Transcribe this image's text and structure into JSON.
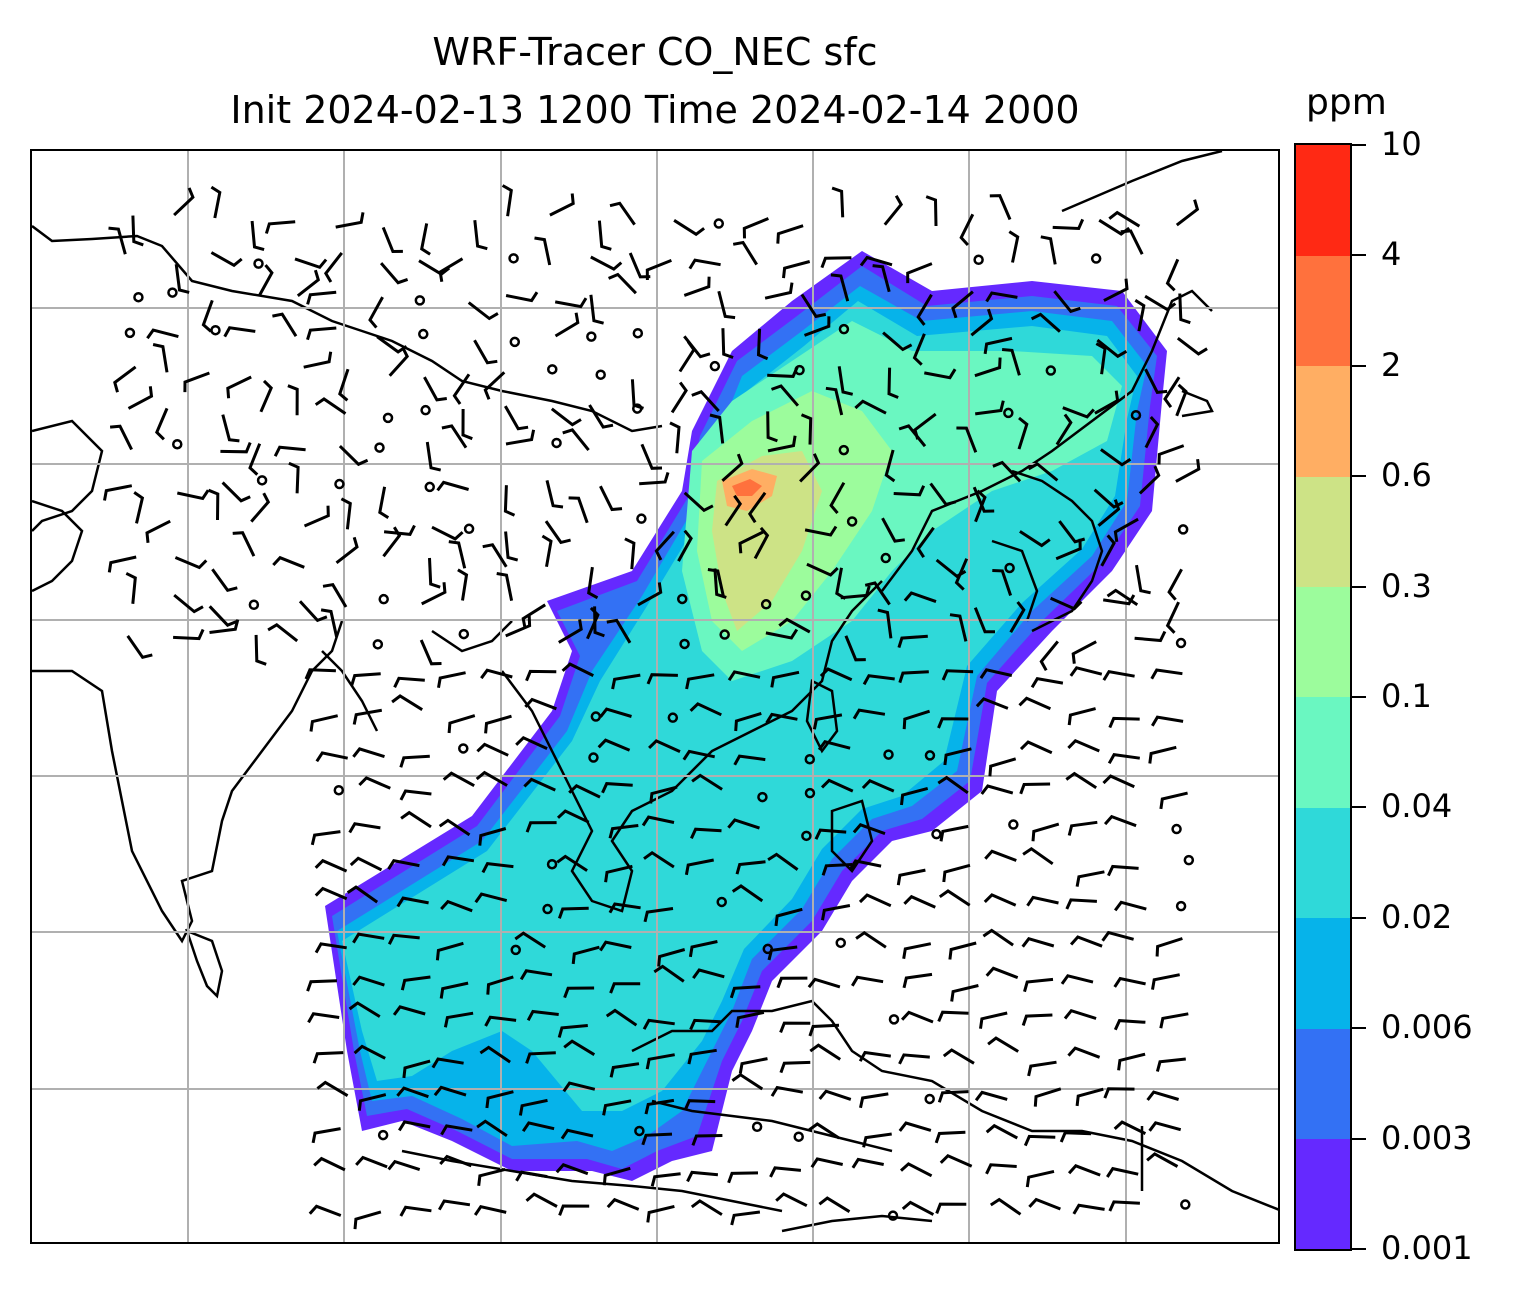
{
  "title": {
    "line1": "WRF-Tracer CO_NEC sfc",
    "line2": "Init 2024-02-13 1200 Time 2024-02-14 2000"
  },
  "colorbar": {
    "units": "ppm",
    "ticks": [
      "0.001",
      "0.003",
      "0.006",
      "0.02",
      "0.04",
      "0.1",
      "0.3",
      "0.6",
      "2",
      "4",
      "10"
    ],
    "colors": [
      "#6529ff",
      "#3371f4",
      "#06b3ea",
      "#2fd9d9",
      "#6af7c1",
      "#9cfc9c",
      "#cde386",
      "#ffae63",
      "#ff713d",
      "#ff2914"
    ]
  },
  "map": {
    "gridlines": "on",
    "features": [
      "coastlines",
      "country borders",
      "wind barbs",
      "calm-wind circles",
      "CO tracer concentration shading"
    ]
  }
}
